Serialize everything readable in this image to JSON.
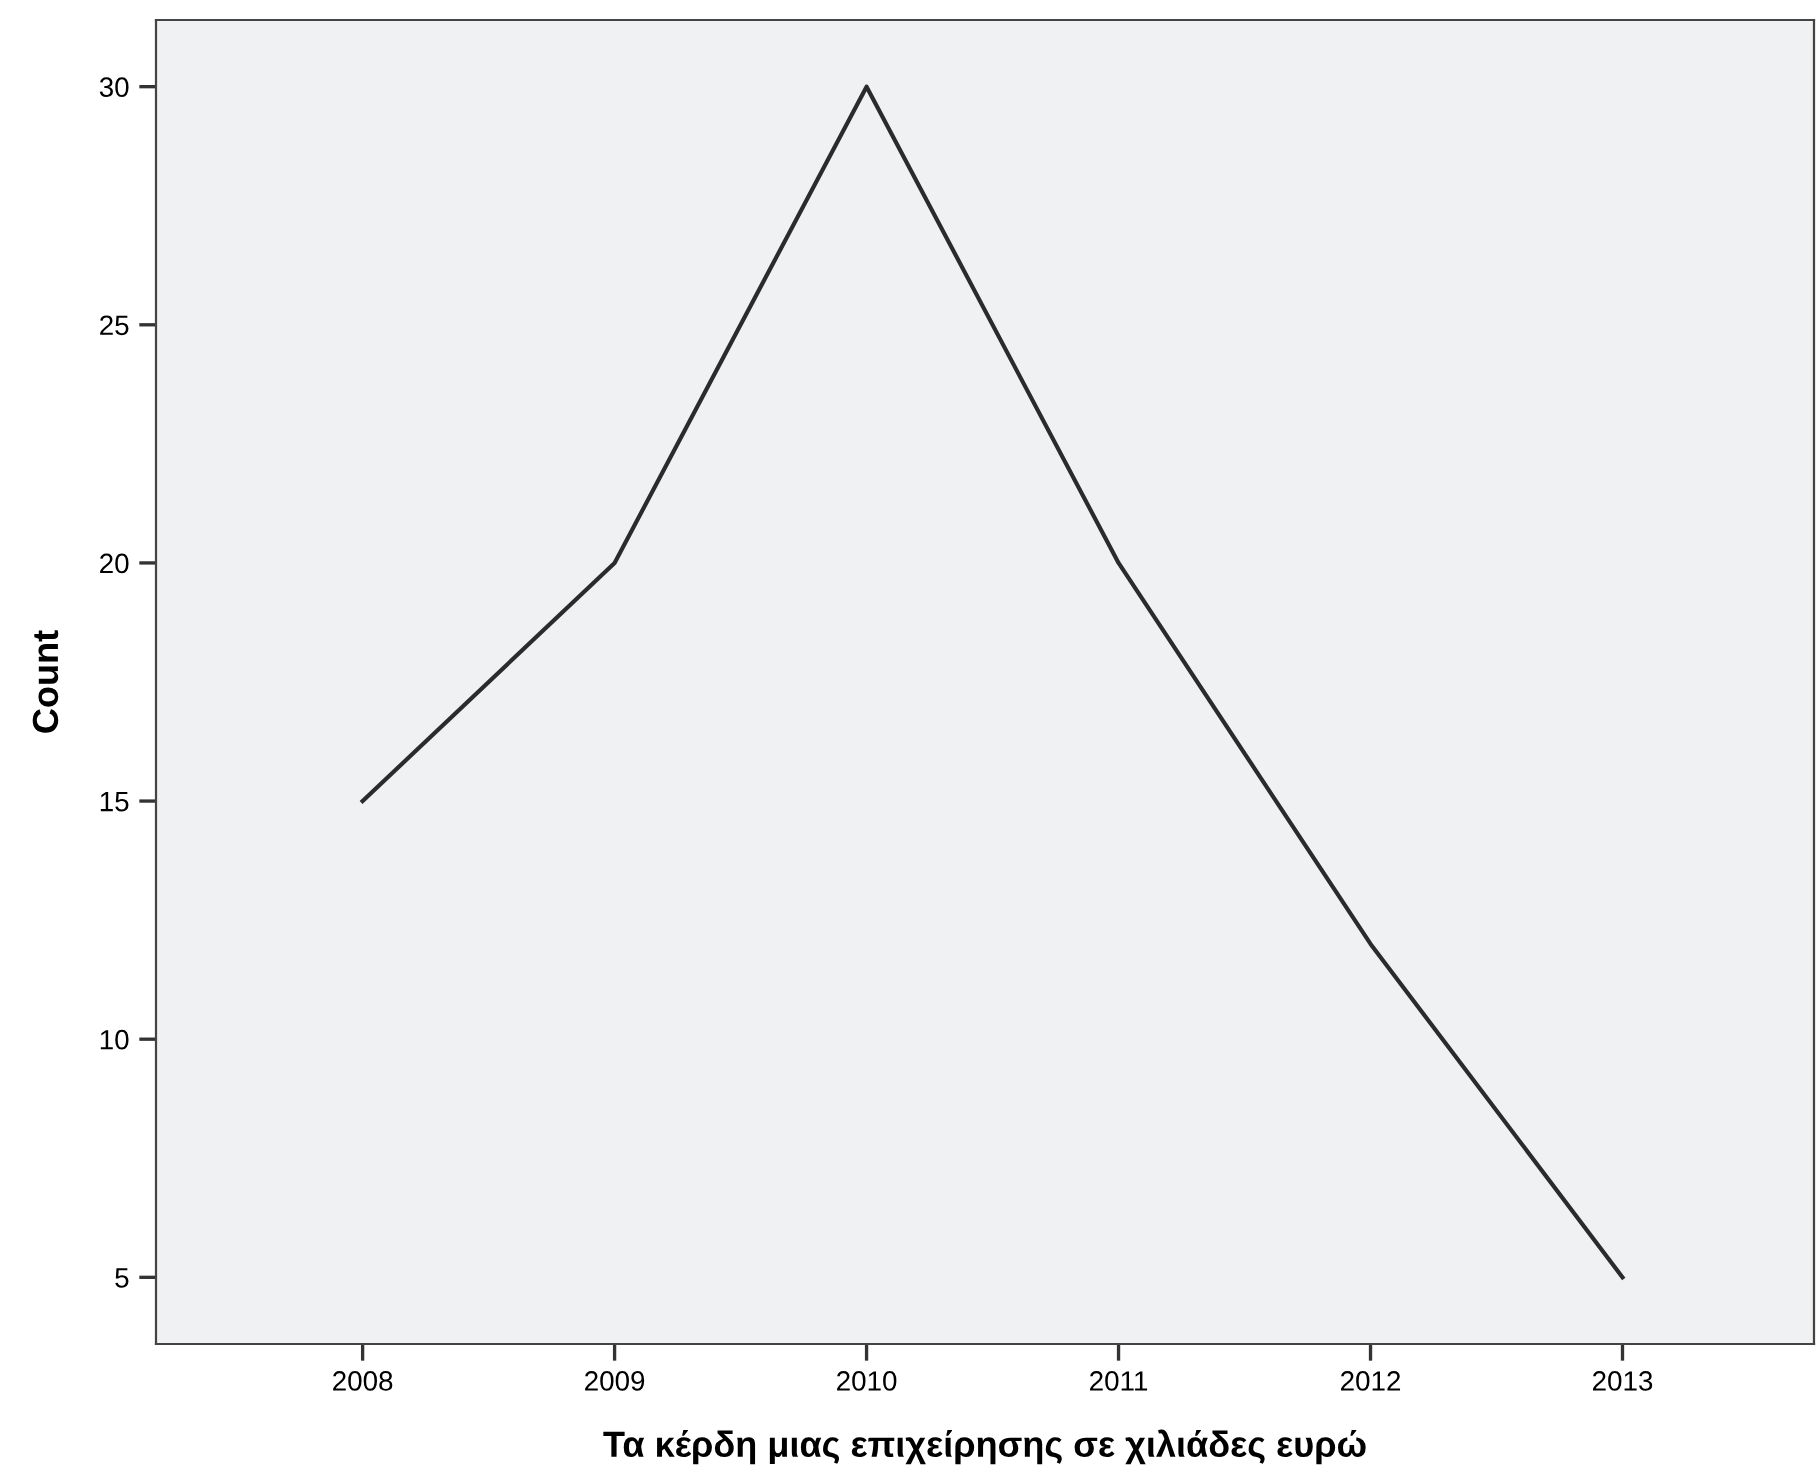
{
  "chart_data": {
    "type": "line",
    "xlabel": "Τα κέρδη μιας επιχείρησης σε χιλιάδες ευρώ",
    "ylabel": "Count",
    "categories": [
      "2008",
      "2009",
      "2010",
      "2011",
      "2012",
      "2013"
    ],
    "series": [
      {
        "color": "#2b2b2b",
        "values": [
          15,
          20,
          30,
          20,
          12,
          5
        ]
      }
    ],
    "ylim": [
      3.6,
      31.4
    ],
    "yticks": [
      5,
      10,
      15,
      20,
      25,
      30
    ],
    "grid": false,
    "legend": false,
    "marker": "none",
    "line_style": "solid"
  }
}
